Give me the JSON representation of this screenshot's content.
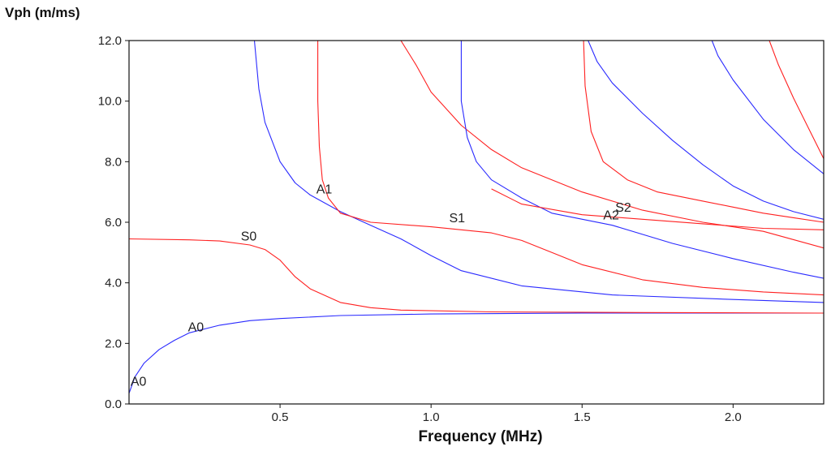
{
  "chart_data": {
    "type": "line",
    "ylabel": "Vph (m/ms)",
    "xlabel": "Frequency (MHz)",
    "xlim": [
      0.0,
      2.3
    ],
    "ylim": [
      0.0,
      12.0
    ],
    "xticks": [
      {
        "v": 0.5,
        "label": "0.5"
      },
      {
        "v": 1.0,
        "label": "1.0"
      },
      {
        "v": 1.5,
        "label": "1.5"
      },
      {
        "v": 2.0,
        "label": "2.0"
      }
    ],
    "yticks": [
      {
        "v": 0,
        "label": "0.0"
      },
      {
        "v": 2,
        "label": "2.0"
      },
      {
        "v": 4,
        "label": "4.0"
      },
      {
        "v": 6,
        "label": "6.0"
      },
      {
        "v": 8,
        "label": "8.0"
      },
      {
        "v": 10,
        "label": "10.0"
      },
      {
        "v": 12,
        "label": "12.0"
      }
    ],
    "grid": false,
    "colors": {
      "symmetric": "#ff2020",
      "antisymmetric": "#2a2aff"
    },
    "series": [
      {
        "color": "#2a2aff",
        "points": [
          [
            0.0,
            0.35
          ],
          [
            0.02,
            0.9
          ],
          [
            0.05,
            1.35
          ],
          [
            0.1,
            1.8
          ],
          [
            0.15,
            2.1
          ],
          [
            0.2,
            2.35
          ],
          [
            0.3,
            2.6
          ],
          [
            0.4,
            2.75
          ],
          [
            0.5,
            2.82
          ],
          [
            0.7,
            2.92
          ],
          [
            1.0,
            2.97
          ],
          [
            1.5,
            3.0
          ],
          [
            2.0,
            3.0
          ],
          [
            2.3,
            3.0
          ]
        ]
      },
      {
        "color": "#ff2020",
        "points": [
          [
            0.0,
            5.45
          ],
          [
            0.2,
            5.42
          ],
          [
            0.3,
            5.38
          ],
          [
            0.4,
            5.25
          ],
          [
            0.45,
            5.1
          ],
          [
            0.5,
            4.75
          ],
          [
            0.55,
            4.2
          ],
          [
            0.6,
            3.8
          ],
          [
            0.7,
            3.35
          ],
          [
            0.8,
            3.18
          ],
          [
            0.9,
            3.1
          ],
          [
            1.2,
            3.04
          ],
          [
            1.7,
            3.02
          ],
          [
            2.3,
            3.0
          ]
        ]
      },
      {
        "color": "#2a2aff",
        "points": [
          [
            0.415,
            12.0
          ],
          [
            0.43,
            10.4
          ],
          [
            0.45,
            9.3
          ],
          [
            0.5,
            8.0
          ],
          [
            0.55,
            7.3
          ],
          [
            0.6,
            6.9
          ],
          [
            0.7,
            6.35
          ],
          [
            0.8,
            5.9
          ],
          [
            0.9,
            5.45
          ],
          [
            1.0,
            4.9
          ],
          [
            1.1,
            4.4
          ],
          [
            1.3,
            3.9
          ],
          [
            1.6,
            3.6
          ],
          [
            2.0,
            3.45
          ],
          [
            2.3,
            3.35
          ]
        ]
      },
      {
        "color": "#ff2020",
        "points": [
          [
            0.625,
            12.0
          ],
          [
            0.625,
            10.0
          ],
          [
            0.63,
            8.5
          ],
          [
            0.64,
            7.4
          ],
          [
            0.66,
            6.8
          ],
          [
            0.7,
            6.3
          ],
          [
            0.8,
            6.0
          ],
          [
            1.0,
            5.85
          ],
          [
            1.2,
            5.65
          ],
          [
            1.3,
            5.4
          ],
          [
            1.4,
            5.0
          ],
          [
            1.5,
            4.6
          ],
          [
            1.7,
            4.1
          ],
          [
            1.9,
            3.85
          ],
          [
            2.1,
            3.7
          ],
          [
            2.3,
            3.6
          ]
        ]
      },
      {
        "color": "#ff2020",
        "points": [
          [
            0.9,
            12.0
          ],
          [
            0.95,
            11.2
          ],
          [
            1.0,
            10.3
          ],
          [
            1.1,
            9.2
          ],
          [
            1.2,
            8.4
          ],
          [
            1.3,
            7.8
          ],
          [
            1.5,
            7.0
          ],
          [
            1.7,
            6.4
          ],
          [
            1.9,
            6.0
          ],
          [
            2.1,
            5.7
          ],
          [
            2.3,
            5.15
          ]
        ]
      },
      {
        "color": "#2a2aff",
        "points": [
          [
            1.1,
            12.0
          ],
          [
            1.1,
            10.0
          ],
          [
            1.12,
            8.8
          ],
          [
            1.15,
            8.0
          ],
          [
            1.2,
            7.4
          ],
          [
            1.3,
            6.8
          ],
          [
            1.4,
            6.3
          ],
          [
            1.6,
            5.9
          ],
          [
            1.8,
            5.3
          ],
          [
            2.0,
            4.8
          ],
          [
            2.2,
            4.35
          ],
          [
            2.3,
            4.15
          ]
        ]
      },
      {
        "color": "#ff2020",
        "points": [
          [
            1.505,
            12.0
          ],
          [
            1.51,
            10.5
          ],
          [
            1.53,
            9.0
          ],
          [
            1.57,
            8.0
          ],
          [
            1.65,
            7.4
          ],
          [
            1.75,
            7.0
          ],
          [
            1.9,
            6.7
          ],
          [
            2.0,
            6.5
          ],
          [
            2.1,
            6.3
          ],
          [
            2.2,
            6.15
          ],
          [
            2.3,
            6.0
          ]
        ]
      },
      {
        "color": "#2a2aff",
        "points": [
          [
            1.52,
            12.0
          ],
          [
            1.55,
            11.3
          ],
          [
            1.6,
            10.6
          ],
          [
            1.7,
            9.6
          ],
          [
            1.8,
            8.7
          ],
          [
            1.9,
            7.9
          ],
          [
            2.0,
            7.2
          ],
          [
            2.1,
            6.7
          ],
          [
            2.2,
            6.35
          ],
          [
            2.3,
            6.1
          ]
        ]
      },
      {
        "color": "#2a2aff",
        "points": [
          [
            1.93,
            12.0
          ],
          [
            1.95,
            11.5
          ],
          [
            2.0,
            10.7
          ],
          [
            2.1,
            9.4
          ],
          [
            2.2,
            8.4
          ],
          [
            2.3,
            7.6
          ]
        ]
      },
      {
        "color": "#ff2020",
        "points": [
          [
            2.12,
            12.0
          ],
          [
            2.15,
            11.2
          ],
          [
            2.2,
            10.1
          ],
          [
            2.25,
            9.1
          ],
          [
            2.3,
            8.1
          ]
        ]
      },
      {
        "color": "#ff2020",
        "points": [
          [
            1.2,
            7.1
          ],
          [
            1.3,
            6.6
          ],
          [
            1.5,
            6.25
          ],
          [
            1.7,
            6.1
          ],
          [
            1.9,
            5.95
          ],
          [
            2.1,
            5.8
          ],
          [
            2.3,
            5.75
          ]
        ]
      }
    ],
    "labels": [
      {
        "text": "A0",
        "x": 0.005,
        "y": 0.6
      },
      {
        "text": "A0",
        "x": 0.195,
        "y": 2.4
      },
      {
        "text": "S0",
        "x": 0.37,
        "y": 5.4
      },
      {
        "text": "A1",
        "x": 0.62,
        "y": 6.95
      },
      {
        "text": "S1",
        "x": 1.06,
        "y": 6.0
      },
      {
        "text": "A2",
        "x": 1.57,
        "y": 6.1
      },
      {
        "text": "S2",
        "x": 1.61,
        "y": 6.35
      }
    ]
  }
}
